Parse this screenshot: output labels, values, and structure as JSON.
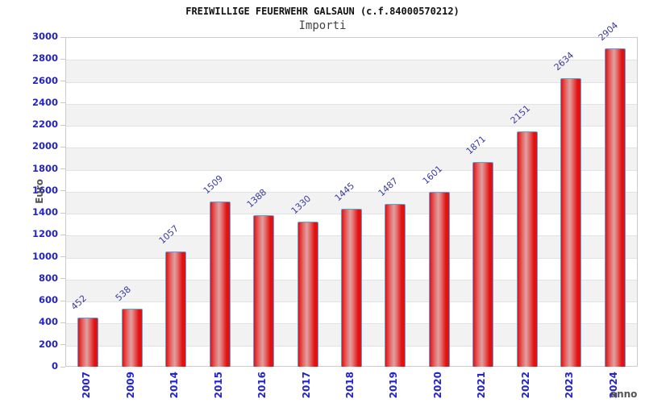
{
  "header": {
    "title": "FREIWILLIGE FEUERWEHR GALSAUN (c.f.84000570212)",
    "subtitle": "Importi"
  },
  "chart_data": {
    "type": "bar",
    "title": "FREIWILLIGE FEUERWEHR GALSAUN (c.f.84000570212)",
    "subtitle": "Importi",
    "xlabel": "anno",
    "ylabel": "Euro",
    "categories": [
      "2007",
      "2009",
      "2014",
      "2015",
      "2016",
      "2017",
      "2018",
      "2019",
      "2020",
      "2021",
      "2022",
      "2023",
      "2024"
    ],
    "values": [
      452,
      538,
      1057,
      1509,
      1388,
      1330,
      1445,
      1487,
      1601,
      1871,
      2151,
      2634,
      2904
    ],
    "ylim": [
      0,
      3000
    ],
    "ytick_step": 200,
    "grid": true,
    "legend_position": "none",
    "colors": {
      "bar_fill": "#e01212",
      "bar_highlight": "#dda2a2",
      "bar_border": "#5e9fdd",
      "axis_tick_label": "#2323cc",
      "value_label": "#3a3a9e",
      "axis_title": "#555555",
      "band_fill": "#f2f2f2",
      "gridline": "#e2e2e2",
      "plot_border": "#cccccc"
    }
  }
}
